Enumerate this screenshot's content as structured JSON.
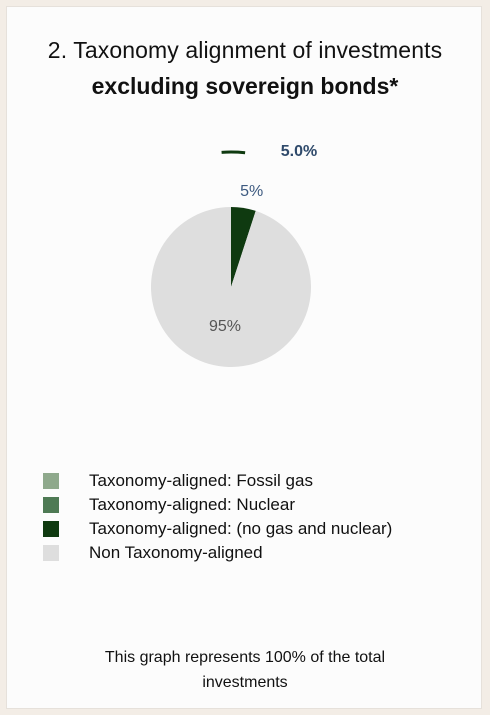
{
  "title": {
    "line1": "2. Taxonomy alignment of investments",
    "line2": "excluding sovereign bonds*"
  },
  "chart_data": {
    "type": "pie",
    "slices": [
      {
        "label": "Taxonomy-aligned: (no gas and nuclear)",
        "value": 5,
        "color": "#0f3a10",
        "data_label": "5%"
      },
      {
        "label": "Non Taxonomy-aligned",
        "value": 95,
        "color": "#dedede",
        "data_label": "95%"
      }
    ],
    "callout": {
      "text": "5.0%",
      "color": "#2f4a6b",
      "line_color": "#0f3a10"
    },
    "legend": [
      {
        "label": "Taxonomy-aligned: Fossil gas",
        "color": "#8fa98c"
      },
      {
        "label": "Taxonomy-aligned: Nuclear",
        "color": "#4e7a54"
      },
      {
        "label": "Taxonomy-aligned: (no gas and nuclear)",
        "color": "#0f3a10"
      },
      {
        "label": "Non Taxonomy-aligned",
        "color": "#dedede"
      }
    ],
    "legend_position": "bottom"
  },
  "footer": {
    "line1": "This graph represents 100% of the total",
    "line2": "investments"
  }
}
